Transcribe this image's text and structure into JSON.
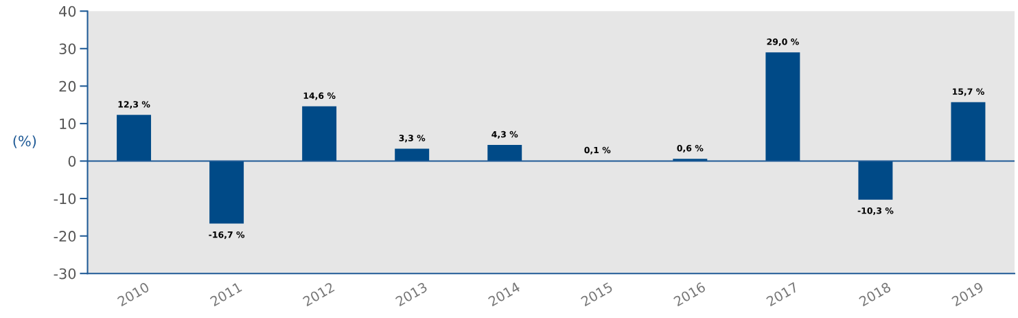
{
  "chart_data": {
    "type": "bar",
    "ylabel": "(%)",
    "categories": [
      "2010",
      "2011",
      "2012",
      "2013",
      "2014",
      "2015",
      "2016",
      "2017",
      "2018",
      "2019"
    ],
    "values": [
      12.3,
      -16.7,
      14.6,
      3.3,
      4.3,
      0.1,
      0.6,
      29.0,
      -10.3,
      15.7
    ],
    "value_labels": [
      "12,3 %",
      "-16,7 %",
      "14,6 %",
      "3,3 %",
      "4,3 %",
      "0,1 %",
      "0,6 %",
      "29,0 %",
      "-10,3 %",
      "15,7 %"
    ],
    "color": "#004a87",
    "ylim": [
      -30,
      40
    ],
    "yticks": [
      -30,
      -20,
      -10,
      0,
      10,
      20,
      30,
      40
    ],
    "grid": false,
    "legend": false,
    "ref_lines": [
      {
        "axis": "y",
        "value": 0,
        "label": null,
        "color": "#1f5a96"
      }
    ]
  }
}
